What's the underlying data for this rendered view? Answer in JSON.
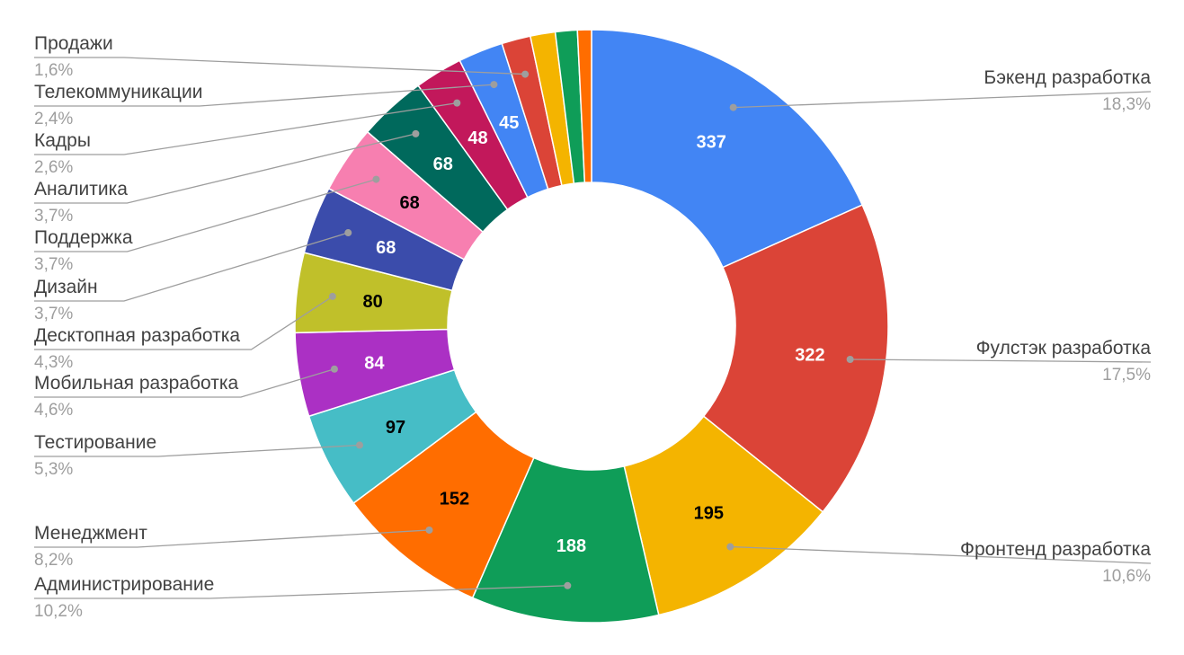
{
  "chart_data": {
    "type": "pie",
    "donut": true,
    "slices": [
      {
        "label": "Бэкенд разработка",
        "value": 337,
        "percent_label": "18,3%",
        "color": "#4285f4",
        "value_text_color": "#ffffff"
      },
      {
        "label": "Фулстэк разработка",
        "value": 322,
        "percent_label": "17,5%",
        "color": "#db4437",
        "value_text_color": "#ffffff"
      },
      {
        "label": "Фронтенд разработка",
        "value": 195,
        "percent_label": "10,6%",
        "color": "#f4b400",
        "value_text_color": "#000000"
      },
      {
        "label": "Администрирование",
        "value": 188,
        "percent_label": "10,2%",
        "color": "#0f9d58",
        "value_text_color": "#ffffff"
      },
      {
        "label": "Менеджмент",
        "value": 152,
        "percent_label": "8,2%",
        "color": "#ff6d00",
        "value_text_color": "#000000"
      },
      {
        "label": "Тестирование",
        "value": 97,
        "percent_label": "5,3%",
        "color": "#46bdc6",
        "value_text_color": "#000000"
      },
      {
        "label": "Мобильная разработка",
        "value": 84,
        "percent_label": "4,6%",
        "color": "#ab30c4",
        "value_text_color": "#ffffff"
      },
      {
        "label": "Десктопная разработка",
        "value": 80,
        "percent_label": "4,3%",
        "color": "#c0c02a",
        "value_text_color": "#000000"
      },
      {
        "label": "Дизайн",
        "value": 68,
        "percent_label": "3,7%",
        "color": "#3b4cab",
        "value_text_color": "#ffffff"
      },
      {
        "label": "Поддержка",
        "value": 68,
        "percent_label": "3,7%",
        "color": "#f77fb0",
        "value_text_color": "#000000"
      },
      {
        "label": "Аналитика",
        "value": 68,
        "percent_label": "3,7%",
        "color": "#00695c",
        "value_text_color": "#ffffff"
      },
      {
        "label": "Кадры",
        "value": 48,
        "percent_label": "2,6%",
        "color": "#c2185b",
        "value_text_color": "#ffffff"
      },
      {
        "label": "Телекоммуникации",
        "value": 45,
        "percent_label": "2,4%",
        "color": "#4285f4",
        "value_text_color": "#ffffff"
      },
      {
        "label": "Продажи",
        "value": 29,
        "percent_label": "1,6%",
        "color": "#db4437",
        "value_text_color": "#ffffff"
      },
      {
        "label": "",
        "value": 25,
        "percent_label": "",
        "color": "#f4b400",
        "value_text_color": "#000000"
      },
      {
        "label": "",
        "value": 22,
        "percent_label": "",
        "color": "#0f9d58",
        "value_text_color": "#ffffff"
      },
      {
        "label": "",
        "value": 14,
        "percent_label": "",
        "color": "#ff6d00",
        "value_text_color": "#000000"
      }
    ]
  }
}
